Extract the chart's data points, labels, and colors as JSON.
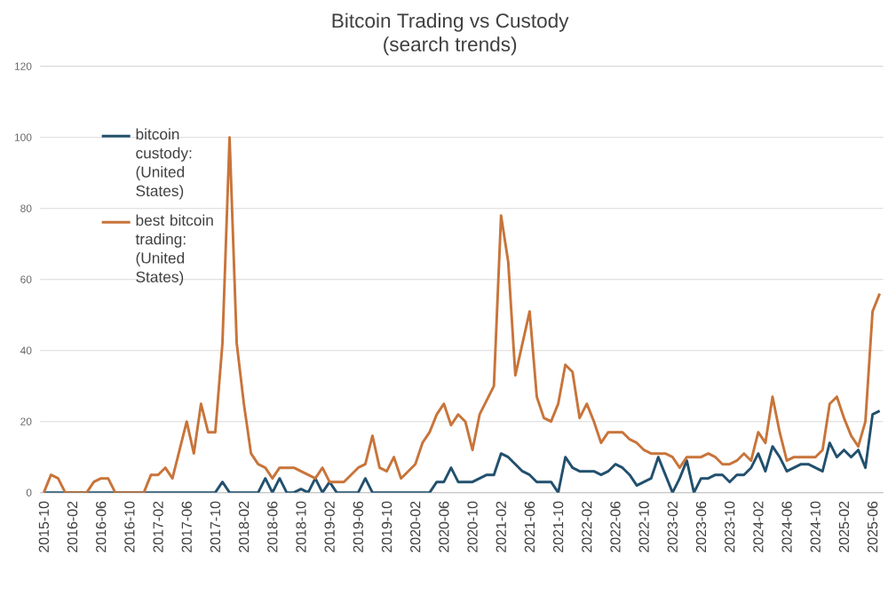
{
  "chart_data": {
    "type": "line",
    "title": "Bitcoin Trading vs Custody",
    "subtitle": "(search trends)",
    "categories": [
      "2015-10",
      null,
      null,
      null,
      "2016-02",
      null,
      null,
      null,
      "2016-06",
      null,
      null,
      null,
      "2016-10",
      null,
      null,
      null,
      "2017-02",
      null,
      null,
      null,
      "2017-06",
      null,
      null,
      null,
      "2017-10",
      null,
      null,
      null,
      "2018-02",
      null,
      null,
      null,
      "2018-06",
      null,
      null,
      null,
      "2018-10",
      null,
      null,
      null,
      "2019-02",
      null,
      null,
      null,
      "2019-06",
      null,
      null,
      null,
      "2019-10",
      null,
      null,
      null,
      "2020-02",
      null,
      null,
      null,
      "2020-06",
      null,
      null,
      null,
      "2020-10",
      null,
      null,
      null,
      "2021-02",
      null,
      null,
      null,
      "2021-06",
      null,
      null,
      null,
      "2021-10",
      null,
      null,
      null,
      "2022-02",
      null,
      null,
      null,
      "2022-06",
      null,
      null,
      null,
      "2022-10",
      null,
      null,
      null,
      "2023-02",
      null,
      null,
      null,
      "2023-06",
      null,
      null,
      null,
      "2023-10",
      null,
      null,
      null,
      "2024-02",
      null,
      null,
      null,
      "2024-06",
      null,
      null,
      null,
      "2024-10",
      null,
      null,
      null,
      "2025-02",
      null,
      null,
      null,
      "2025-06",
      null
    ],
    "series": [
      {
        "name": "bitcoin custody: (United States)",
        "color": "#22506e",
        "values": [
          0,
          0,
          0,
          0,
          0,
          0,
          0,
          0,
          0,
          0,
          0,
          0,
          0,
          0,
          0,
          0,
          0,
          0,
          0,
          0,
          0,
          0,
          0,
          0,
          0,
          3,
          0,
          0,
          0,
          0,
          0,
          4,
          0,
          4,
          0,
          0,
          1,
          0,
          4,
          0,
          3,
          0,
          0,
          0,
          0,
          4,
          0,
          0,
          0,
          0,
          0,
          0,
          0,
          0,
          0,
          3,
          3,
          7,
          3,
          3,
          3,
          4,
          5,
          5,
          11,
          10,
          8,
          6,
          5,
          3,
          3,
          3,
          0,
          10,
          7,
          6,
          6,
          6,
          5,
          6,
          8,
          7,
          5,
          2,
          3,
          4,
          10,
          5,
          0,
          4,
          9,
          0,
          4,
          4,
          5,
          5,
          3,
          5,
          5,
          7,
          11,
          6,
          13,
          10,
          6,
          7,
          8,
          8,
          7,
          6,
          14,
          10,
          12,
          10,
          12,
          7,
          22,
          23
        ]
      },
      {
        "name": "best bitcoin trading: (United States)",
        "color": "#c8743a",
        "values": [
          0,
          5,
          4,
          0,
          0,
          0,
          0,
          3,
          4,
          4,
          0,
          0,
          0,
          0,
          0,
          5,
          5,
          7,
          4,
          12,
          20,
          11,
          25,
          17,
          17,
          42,
          100,
          42,
          25,
          11,
          8,
          7,
          4,
          7,
          7,
          7,
          6,
          5,
          4,
          7,
          3,
          3,
          3,
          5,
          7,
          8,
          16,
          7,
          6,
          10,
          4,
          6,
          8,
          14,
          17,
          22,
          25,
          19,
          22,
          20,
          12,
          22,
          26,
          30,
          78,
          65,
          33,
          42,
          51,
          27,
          21,
          20,
          25,
          36,
          34,
          21,
          25,
          20,
          14,
          17,
          17,
          17,
          15,
          14,
          12,
          11,
          11,
          11,
          10,
          7,
          10,
          10,
          10,
          11,
          10,
          8,
          8,
          9,
          11,
          9,
          17,
          14,
          27,
          17,
          9,
          10,
          10,
          10,
          10,
          12,
          25,
          27,
          21,
          16,
          13,
          20,
          51,
          56
        ]
      }
    ],
    "ylim": [
      0,
      120
    ],
    "yticks": [
      0,
      20,
      40,
      60,
      80,
      100,
      120
    ],
    "grid": "y",
    "legend": "top left",
    "marker": "none",
    "line_style": "solid"
  }
}
